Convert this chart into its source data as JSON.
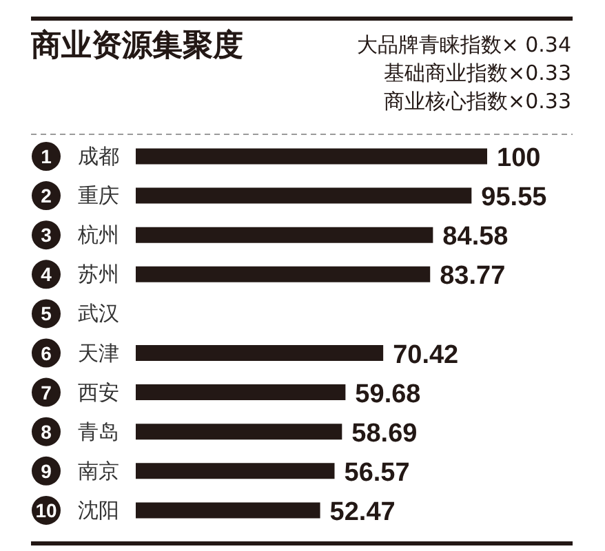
{
  "chart_data": {
    "type": "bar",
    "orientation": "horizontal",
    "title": "商业资源集聚度",
    "subtitle": "大品牌青睐指数× 0.34\n基础商业指数×0.33\n商业核心指数×0.33",
    "annotations": [
      "1",
      "2",
      "3",
      "4",
      "5",
      "6",
      "7",
      "8",
      "9",
      "10"
    ],
    "categories": [
      "成都",
      "重庆",
      "杭州",
      "苏州",
      "武汉",
      "天津",
      "西安",
      "青岛",
      "南京",
      "沈阳"
    ],
    "values": [
      100,
      95.55,
      84.58,
      83.77,
      null,
      70.42,
      59.68,
      58.69,
      56.57,
      52.47
    ],
    "color": "#231815",
    "data_labels": true,
    "tick_labels": "y"
  }
}
